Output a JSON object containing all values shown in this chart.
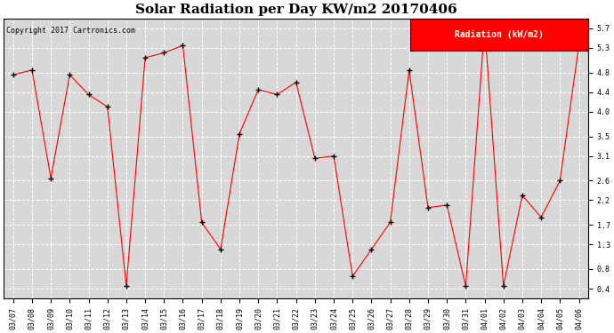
{
  "title": "Solar Radiation per Day KW/m2 20170406",
  "copyright_text": "Copyright 2017 Cartronics.com",
  "legend_label": "Radiation (kW/m2)",
  "x_labels": [
    "03/07",
    "03/08",
    "03/09",
    "03/10",
    "03/11",
    "03/12",
    "03/13",
    "03/14",
    "03/15",
    "03/16",
    "03/17",
    "03/18",
    "03/19",
    "03/20",
    "03/21",
    "03/22",
    "03/23",
    "03/24",
    "03/25",
    "03/26",
    "03/27",
    "03/28",
    "03/29",
    "03/30",
    "03/31",
    "04/01",
    "04/02",
    "04/03",
    "04/04",
    "04/05",
    "04/06"
  ],
  "y_values": [
    4.75,
    4.85,
    2.65,
    4.75,
    4.35,
    4.1,
    0.45,
    5.1,
    5.2,
    5.35,
    1.75,
    1.2,
    3.55,
    4.45,
    4.35,
    4.6,
    3.05,
    3.1,
    0.65,
    1.2,
    1.75,
    4.85,
    2.05,
    2.1,
    0.45,
    5.75,
    0.45,
    2.3,
    1.85,
    2.6,
    5.35
  ],
  "y_ticks": [
    0.4,
    0.8,
    1.3,
    1.7,
    2.2,
    2.6,
    3.1,
    3.5,
    4.0,
    4.4,
    4.8,
    5.3,
    5.7
  ],
  "y_min": 0.2,
  "y_max": 5.9,
  "line_color": "red",
  "marker_color": "black",
  "bg_color": "#ffffff",
  "plot_bg_color": "#d8d8d8",
  "grid_color": "#ffffff",
  "legend_bg": "red",
  "legend_text_color": "white",
  "title_fontsize": 11,
  "copyright_fontsize": 6,
  "tick_fontsize": 6,
  "legend_fontsize": 7
}
